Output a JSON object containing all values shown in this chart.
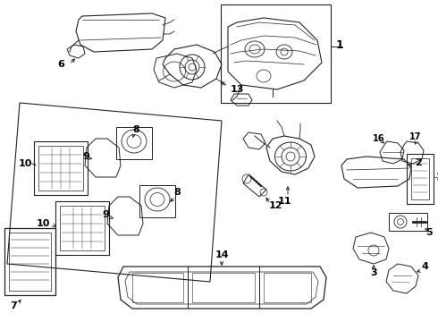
{
  "background_color": "#ffffff",
  "line_color": "#222222",
  "text_color": "#000000",
  "fig_width": 4.9,
  "fig_height": 3.6,
  "dpi": 100
}
